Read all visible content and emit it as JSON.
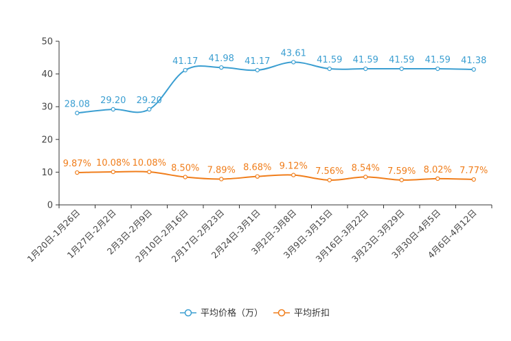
{
  "chart_data": {
    "type": "line",
    "categories": [
      "1月20日-1月26日",
      "1月27日-2月2日",
      "2月3日-2月9日",
      "2月10日-2月16日",
      "2月17日-2月23日",
      "2月24日-3月1日",
      "3月2日-3月8日",
      "3月9日-3月15日",
      "3月16日-3月22日",
      "3月23日-3月29日",
      "3月30日-4月5日",
      "4月6日-4月12日"
    ],
    "ylim": [
      0,
      50
    ],
    "yticks": [
      0,
      10,
      20,
      30,
      40,
      50
    ],
    "ytick_labels": [
      "0",
      "10",
      "20",
      "30",
      "40",
      "50"
    ],
    "legend_position": "bottom-center",
    "series": [
      {
        "name": "平均价格（万）",
        "color": "#3a9ed1",
        "values": [
          28.08,
          29.2,
          29.2,
          41.17,
          41.98,
          41.17,
          43.61,
          41.59,
          41.59,
          41.59,
          41.59,
          41.38
        ],
        "labels": [
          "28.08",
          "29.20",
          "29.20",
          "41.17",
          "41.98",
          "41.17",
          "43.61",
          "41.59",
          "41.59",
          "41.59",
          "41.59",
          "41.38"
        ]
      },
      {
        "name": "平均折扣",
        "color": "#f07d1a",
        "values": [
          9.87,
          10.08,
          10.08,
          8.5,
          7.89,
          8.68,
          9.12,
          7.56,
          8.54,
          7.59,
          8.02,
          7.77
        ],
        "labels": [
          "9.87%",
          "10.08%",
          "10.08%",
          "8.50%",
          "7.89%",
          "8.68%",
          "9.12%",
          "7.56%",
          "8.54%",
          "7.59%",
          "8.02%",
          "7.77%"
        ]
      }
    ]
  }
}
